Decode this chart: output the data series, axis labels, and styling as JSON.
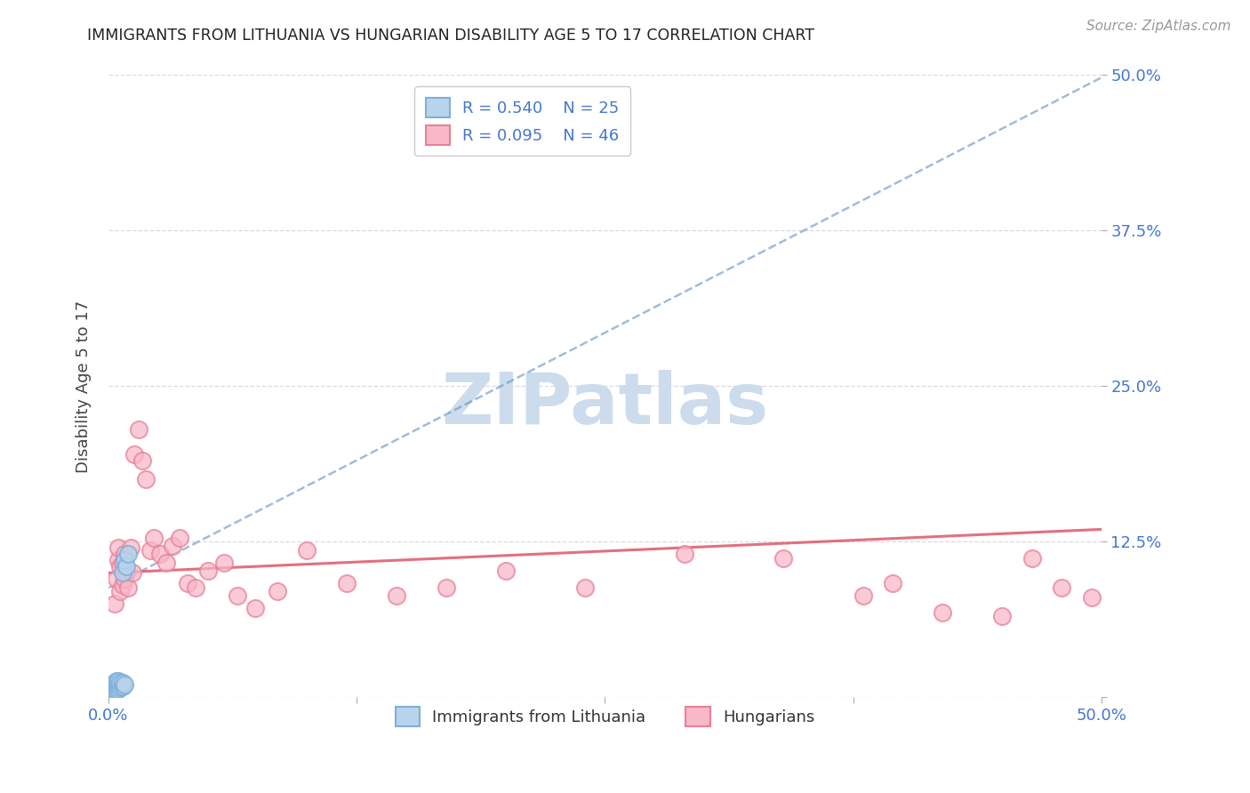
{
  "title": "IMMIGRANTS FROM LITHUANIA VS HUNGARIAN DISABILITY AGE 5 TO 17 CORRELATION CHART",
  "source": "Source: ZipAtlas.com",
  "ylabel": "Disability Age 5 to 17",
  "xlim": [
    0.0,
    0.5
  ],
  "ylim": [
    0.0,
    0.5
  ],
  "xticks": [
    0.0,
    0.125,
    0.25,
    0.375,
    0.5
  ],
  "yticks": [
    0.0,
    0.125,
    0.25,
    0.375,
    0.5
  ],
  "xticklabels": [
    "0.0%",
    "",
    "",
    "",
    "50.0%"
  ],
  "yticklabels_right": [
    "",
    "12.5%",
    "25.0%",
    "37.5%",
    "50.0%"
  ],
  "legend_r1": "R = 0.540",
  "legend_n1": "N = 25",
  "legend_r2": "R = 0.095",
  "legend_n2": "N = 46",
  "legend_label1": "Immigrants from Lithuania",
  "legend_label2": "Hungarians",
  "blue_color": "#b8d4ec",
  "blue_edge": "#80b0d8",
  "pink_color": "#f8b8c8",
  "pink_edge": "#e88098",
  "blue_trend_color": "#6090c8",
  "pink_trend_color": "#e06070",
  "blue_trend_x": [
    0.0,
    0.5
  ],
  "blue_trend_y": [
    0.088,
    0.498
  ],
  "pink_trend_x": [
    0.0,
    0.5
  ],
  "pink_trend_y": [
    0.1,
    0.135
  ],
  "blue_x": [
    0.001,
    0.001,
    0.002,
    0.002,
    0.002,
    0.003,
    0.003,
    0.003,
    0.003,
    0.004,
    0.004,
    0.004,
    0.004,
    0.005,
    0.005,
    0.005,
    0.006,
    0.006,
    0.007,
    0.007,
    0.007,
    0.008,
    0.008,
    0.009,
    0.01
  ],
  "blue_y": [
    0.003,
    0.006,
    0.004,
    0.008,
    0.01,
    0.005,
    0.007,
    0.01,
    0.012,
    0.006,
    0.009,
    0.011,
    0.013,
    0.007,
    0.01,
    0.013,
    0.008,
    0.012,
    0.009,
    0.012,
    0.1,
    0.01,
    0.11,
    0.105,
    0.115
  ],
  "pink_x": [
    0.003,
    0.004,
    0.005,
    0.005,
    0.006,
    0.006,
    0.007,
    0.007,
    0.008,
    0.008,
    0.009,
    0.01,
    0.011,
    0.012,
    0.013,
    0.015,
    0.017,
    0.019,
    0.021,
    0.023,
    0.026,
    0.029,
    0.032,
    0.036,
    0.04,
    0.044,
    0.05,
    0.058,
    0.065,
    0.074,
    0.085,
    0.1,
    0.12,
    0.145,
    0.17,
    0.2,
    0.24,
    0.29,
    0.34,
    0.38,
    0.395,
    0.42,
    0.45,
    0.465,
    0.48,
    0.495
  ],
  "pink_y": [
    0.075,
    0.095,
    0.11,
    0.12,
    0.085,
    0.105,
    0.09,
    0.108,
    0.095,
    0.115,
    0.1,
    0.088,
    0.12,
    0.1,
    0.195,
    0.215,
    0.19,
    0.175,
    0.118,
    0.128,
    0.115,
    0.108,
    0.122,
    0.128,
    0.092,
    0.088,
    0.102,
    0.108,
    0.082,
    0.072,
    0.085,
    0.118,
    0.092,
    0.082,
    0.088,
    0.102,
    0.088,
    0.115,
    0.112,
    0.082,
    0.092,
    0.068,
    0.065,
    0.112,
    0.088,
    0.08
  ],
  "bg_color": "#ffffff",
  "grid_color": "#d8d8d8",
  "title_color": "#222222",
  "source_color": "#999999",
  "axis_tick_color": "#4477cc",
  "label_color": "#444444",
  "watermark_text": "ZIPatlas",
  "watermark_color": "#ccdcec"
}
